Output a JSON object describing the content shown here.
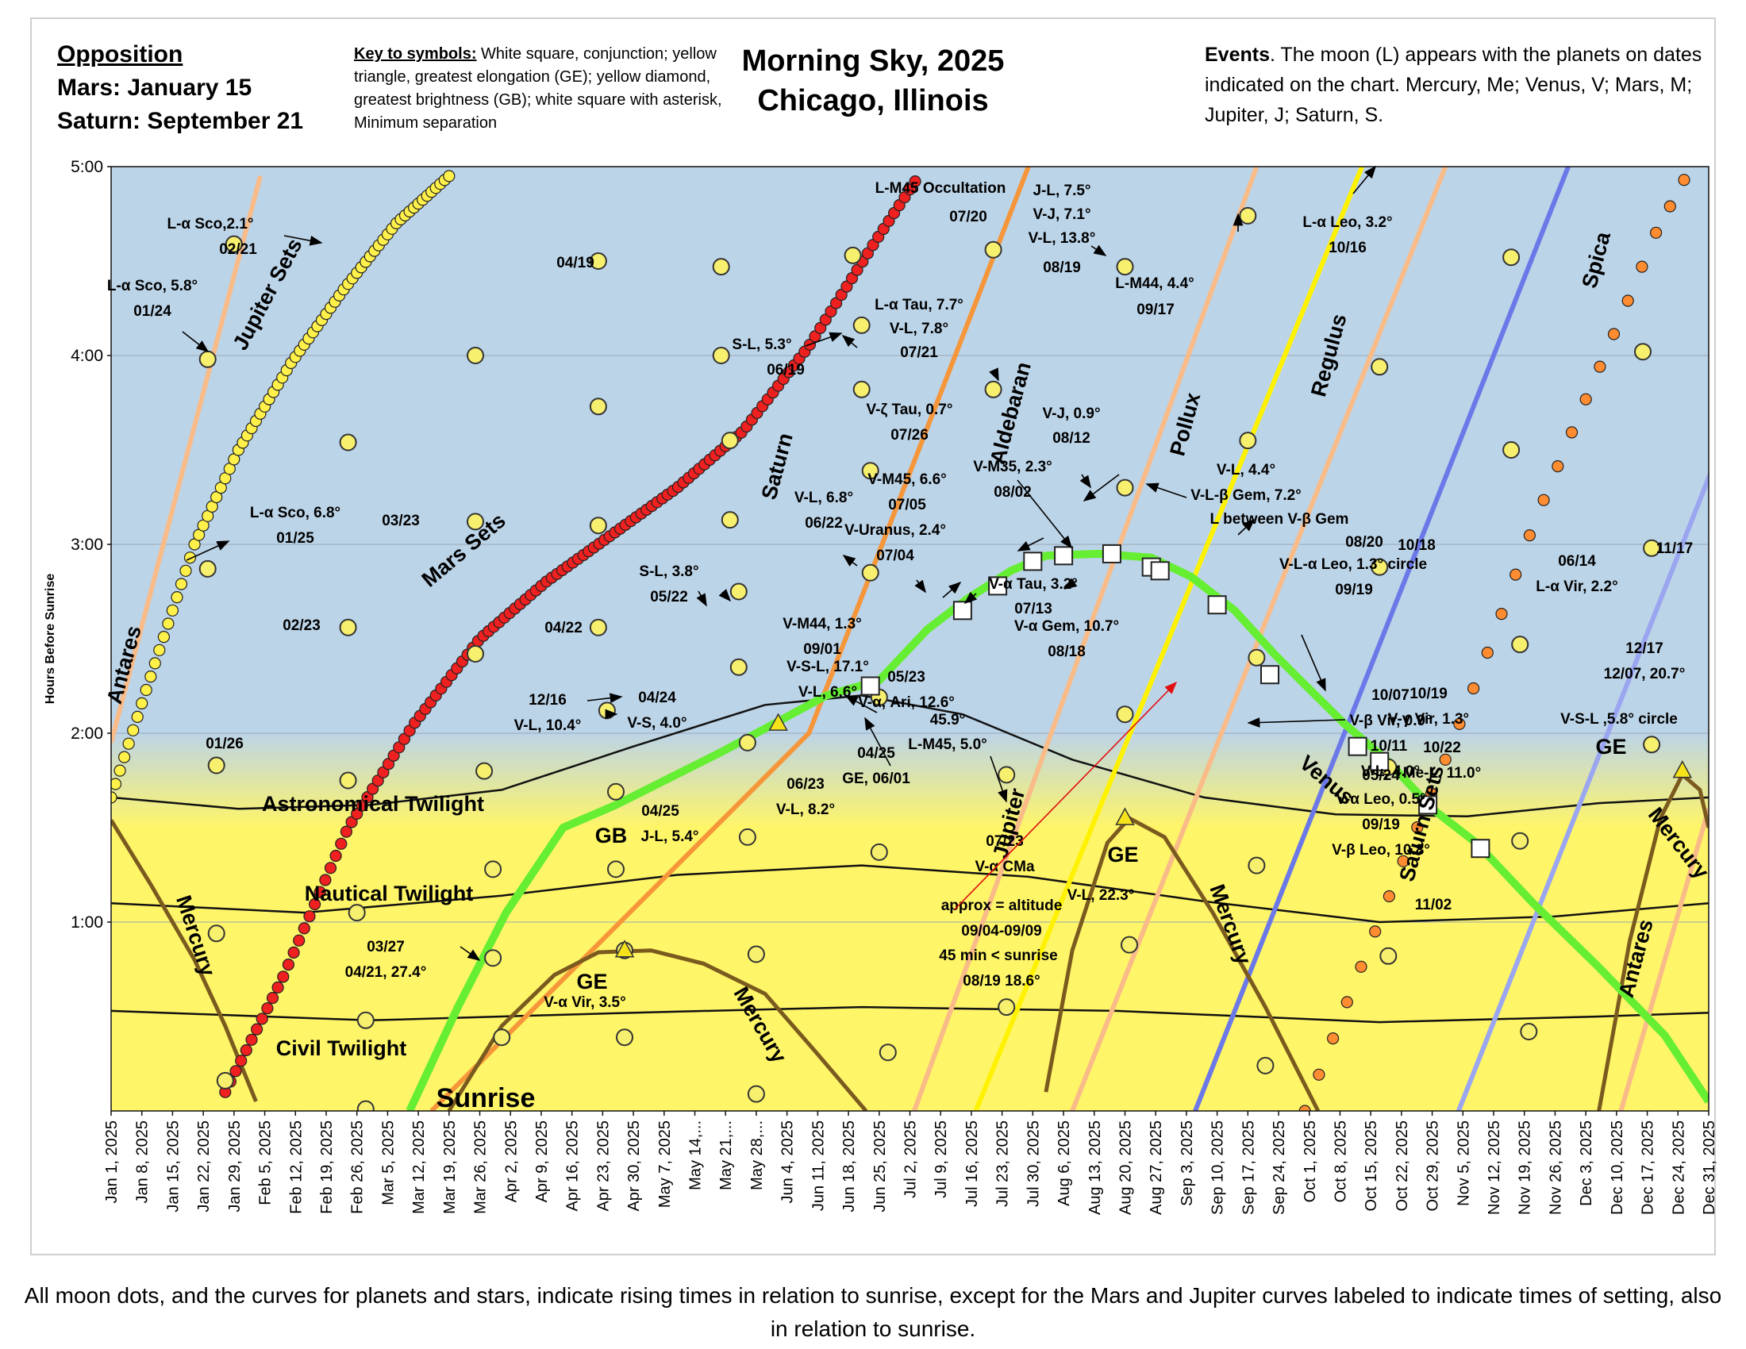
{
  "header": {
    "opposition_title": "Opposition",
    "opposition_mars": "Mars: January 15",
    "opposition_saturn": "Saturn: September 21",
    "key_label": "Key to symbols:",
    "key_text": " White square, conjunction; yellow triangle, greatest elongation (GE); yellow diamond, greatest brightness (GB); white square with asterisk, Minimum separation",
    "title_line1": "Morning Sky, 2025",
    "title_line2": "Chicago, Illinois",
    "events_label": "Events",
    "events_text": ".  The moon (L) appears with the planets on dates indicated on the chart. Mercury, Me; Venus, V; Mars, M; Jupiter, J; Saturn, S."
  },
  "caption": "All moon dots, and the curves for planets and stars, indicate rising  times in relation to sunrise, except for the Mars and Jupiter curves labeled to indicate times of setting, also in relation to sunrise.",
  "colors": {
    "sky": "#bcd4e8",
    "twilight_yellow": "#fff568",
    "venus": "#66ee33",
    "mars": "#ee2020",
    "jupiter_sets": "#fff04a",
    "saturn_sets": "#ff8c30",
    "mercury": "#7a5a1e",
    "saturn": "#f5963a",
    "aldebaran": "#f9bb88",
    "pollux": "#f9bb88",
    "antares": "#f9bb88",
    "jupiter": "#fff200",
    "regulus": "#6b78e8",
    "spica": "#9aa6f0",
    "moon": "#f7ef6e"
  },
  "chart_data": {
    "type": "scatter",
    "title": "Morning Sky, 2025",
    "ylabel": "Hours Before Sunrise",
    "xlabel": "",
    "y_range_hours": [
      0,
      5
    ],
    "x_range_days": [
      1,
      365
    ],
    "yticks": [
      "1:00",
      "2:00",
      "3:00",
      "4:00",
      "5:00"
    ],
    "xticks": [
      "Jan 1, 2025",
      "Jan 8, 2025",
      "Jan 15, 2025",
      "Jan 22, 2025",
      "Jan 29, 2025",
      "Feb 5, 2025",
      "Feb 12, 2025",
      "Feb 19, 2025",
      "Feb 26, 2025",
      "Mar 5, 2025",
      "Mar 12, 2025",
      "Mar 19, 2025",
      "Mar 26, 2025",
      "Apr 2, 2025",
      "Apr 9, 2025",
      "Apr 16, 2025",
      "Apr 23, 2025",
      "Apr 30, 2025",
      "May 7, 2025",
      "May 14,...",
      "May 21,...",
      "May 28,...",
      "Jun 4, 2025",
      "Jun 11, 2025",
      "Jun 18, 2025",
      "Jun 25, 2025",
      "Jul 2, 2025",
      "Jul 9, 2025",
      "Jul 16, 2025",
      "Jul 23, 2025",
      "Jul 30, 2025",
      "Aug 6, 2025",
      "Aug 13, 2025",
      "Aug 20, 2025",
      "Aug 27, 2025",
      "Sep 3, 2025",
      "Sep 10, 2025",
      "Sep 17, 2025",
      "Sep 24, 2025",
      "Oct 1, 2025",
      "Oct 8, 2025",
      "Oct 15, 2025",
      "Oct 22, 2025",
      "Oct 29, 2025",
      "Nov 5, 2025",
      "Nov 12, 2025",
      "Nov 19, 2025",
      "Nov 26, 2025",
      "Dec 3, 2025",
      "Dec 10, 2025",
      "Dec 17, 2025",
      "Dec 24, 2025",
      "Dec 31, 2025"
    ],
    "twilight": {
      "astronomical": [
        [
          1,
          1.66
        ],
        [
          30,
          1.6
        ],
        [
          60,
          1.62
        ],
        [
          90,
          1.7
        ],
        [
          120,
          1.93
        ],
        [
          150,
          2.15
        ],
        [
          172,
          2.2
        ],
        [
          195,
          2.1
        ],
        [
          220,
          1.86
        ],
        [
          250,
          1.66
        ],
        [
          280,
          1.57
        ],
        [
          310,
          1.56
        ],
        [
          340,
          1.63
        ],
        [
          365,
          1.66
        ]
      ],
      "nautical": [
        [
          1,
          1.1
        ],
        [
          45,
          1.05
        ],
        [
          90,
          1.14
        ],
        [
          130,
          1.25
        ],
        [
          172,
          1.3
        ],
        [
          210,
          1.24
        ],
        [
          250,
          1.11
        ],
        [
          290,
          1.0
        ],
        [
          330,
          1.03
        ],
        [
          365,
          1.1
        ]
      ],
      "civil": [
        [
          1,
          0.53
        ],
        [
          60,
          0.48
        ],
        [
          120,
          0.52
        ],
        [
          172,
          0.55
        ],
        [
          230,
          0.53
        ],
        [
          290,
          0.47
        ],
        [
          340,
          0.5
        ],
        [
          365,
          0.52
        ]
      ]
    },
    "venus": [
      [
        69,
        0
      ],
      [
        80,
        0.55
      ],
      [
        91,
        1.05
      ],
      [
        104,
        1.5
      ],
      [
        116,
        1.62
      ],
      [
        128,
        1.76
      ],
      [
        140,
        1.9
      ],
      [
        152,
        2.05
      ],
      [
        164,
        2.2
      ],
      [
        176,
        2.28
      ],
      [
        187,
        2.55
      ],
      [
        196,
        2.71
      ],
      [
        206,
        2.86
      ],
      [
        214,
        2.94
      ],
      [
        226,
        2.95
      ],
      [
        238,
        2.93
      ],
      [
        247,
        2.83
      ],
      [
        257,
        2.65
      ],
      [
        266,
        2.42
      ],
      [
        272,
        2.28
      ],
      [
        282,
        2.05
      ],
      [
        292,
        1.85
      ],
      [
        302,
        1.6
      ],
      [
        312,
        1.42
      ],
      [
        325,
        1.1
      ],
      [
        340,
        0.76
      ],
      [
        355,
        0.4
      ],
      [
        365,
        0.05
      ]
    ],
    "mars_sets": [
      [
        27,
        0.1
      ],
      [
        40,
        0.7
      ],
      [
        55,
        1.5
      ],
      [
        70,
        2.05
      ],
      [
        85,
        2.5
      ],
      [
        100,
        2.8
      ],
      [
        115,
        3.05
      ],
      [
        130,
        3.3
      ],
      [
        145,
        3.6
      ],
      [
        160,
        4.05
      ],
      [
        175,
        4.6
      ],
      [
        185,
        4.95
      ]
    ],
    "jupiter_sets": [
      [
        1,
        1.66
      ],
      [
        10,
        2.3
      ],
      [
        20,
        3.0
      ],
      [
        30,
        3.5
      ],
      [
        42,
        3.96
      ],
      [
        54,
        4.35
      ],
      [
        66,
        4.7
      ],
      [
        78,
        4.95
      ]
    ],
    "saturn_sets": [
      [
        273,
        0
      ],
      [
        283,
        0.6
      ],
      [
        295,
        1.3
      ],
      [
        305,
        1.86
      ],
      [
        315,
        2.45
      ],
      [
        325,
        3.1
      ],
      [
        335,
        3.66
      ],
      [
        345,
        4.2
      ],
      [
        353,
        4.65
      ],
      [
        361,
        5.0
      ]
    ],
    "mercury": [
      [
        [
          1,
          1.54
        ],
        [
          10,
          1.2
        ],
        [
          20,
          0.8
        ],
        [
          27,
          0.45
        ],
        [
          34,
          0.05
        ]
      ],
      [
        [
          78,
          0
        ],
        [
          90,
          0.45
        ],
        [
          102,
          0.72
        ],
        [
          112,
          0.84
        ],
        [
          124,
          0.85
        ],
        [
          136,
          0.78
        ],
        [
          150,
          0.62
        ],
        [
          162,
          0.3
        ],
        [
          173,
          0
        ]
      ],
      [
        [
          214,
          0.1
        ],
        [
          220,
          0.85
        ],
        [
          228,
          1.42
        ],
        [
          233,
          1.55
        ],
        [
          241,
          1.45
        ],
        [
          252,
          1.05
        ],
        [
          264,
          0.55
        ],
        [
          276,
          0
        ]
      ],
      [
        [
          340,
          0
        ],
        [
          347,
          0.9
        ],
        [
          354,
          1.55
        ],
        [
          359,
          1.78
        ],
        [
          363,
          1.7
        ],
        [
          365,
          1.5
        ]
      ]
    ],
    "stars": [
      {
        "name": "Saturn",
        "points": [
          [
            74,
            0
          ],
          [
            160,
            2.0
          ],
          [
            210,
            5.0
          ]
        ]
      },
      {
        "name": "Aldebaran",
        "points": [
          [
            184,
            0
          ],
          [
            262,
            5.0
          ]
        ]
      },
      {
        "name": "Jupiter",
        "points": [
          [
            198,
            0
          ],
          [
            286,
            5.0
          ]
        ]
      },
      {
        "name": "Pollux",
        "points": [
          [
            220,
            0
          ],
          [
            305,
            5.0
          ]
        ]
      },
      {
        "name": "Regulus",
        "points": [
          [
            248,
            0
          ],
          [
            333,
            5.0
          ]
        ]
      },
      {
        "name": "Spica",
        "points": [
          [
            308,
            0
          ],
          [
            393,
            5.0
          ]
        ]
      },
      {
        "name": "Antares",
        "points": [
          [
            1,
            1.95
          ],
          [
            35,
            4.95
          ]
        ]
      },
      {
        "name": "Antares",
        "points": [
          [
            345,
            0
          ],
          [
            365,
            1.6
          ]
        ]
      }
    ],
    "moon_dots": [
      [
        23,
        3.98
      ],
      [
        23,
        2.87
      ],
      [
        25,
        0.94
      ],
      [
        25,
        1.83
      ],
      [
        27,
        0.16
      ],
      [
        29,
        4.59
      ],
      [
        55,
        3.54
      ],
      [
        55,
        2.56
      ],
      [
        55,
        1.75
      ],
      [
        57,
        1.05
      ],
      [
        59,
        0.48
      ],
      [
        59,
        0.01
      ],
      [
        84,
        4.0
      ],
      [
        84,
        3.12
      ],
      [
        84,
        2.42
      ],
      [
        86,
        1.8
      ],
      [
        88,
        1.28
      ],
      [
        88,
        0.81
      ],
      [
        90,
        0.39
      ],
      [
        112,
        4.5
      ],
      [
        112,
        3.73
      ],
      [
        112,
        3.1
      ],
      [
        112,
        2.56
      ],
      [
        114,
        2.12
      ],
      [
        116,
        1.69
      ],
      [
        116,
        1.28
      ],
      [
        118,
        0.85
      ],
      [
        118,
        0.39
      ],
      [
        140,
        4.47
      ],
      [
        140,
        4.0
      ],
      [
        142,
        3.55
      ],
      [
        142,
        3.13
      ],
      [
        144,
        2.75
      ],
      [
        144,
        2.35
      ],
      [
        146,
        1.95
      ],
      [
        146,
        1.45
      ],
      [
        148,
        0.83
      ],
      [
        148,
        0.09
      ],
      [
        170,
        4.53
      ],
      [
        172,
        4.16
      ],
      [
        172,
        3.82
      ],
      [
        174,
        3.39
      ],
      [
        174,
        2.85
      ],
      [
        176,
        2.19
      ],
      [
        176,
        1.37
      ],
      [
        178,
        0.31
      ],
      [
        202,
        4.56
      ],
      [
        202,
        3.82
      ],
      [
        205,
        1.78
      ],
      [
        205,
        0.55
      ],
      [
        232,
        4.47
      ],
      [
        232,
        3.3
      ],
      [
        232,
        2.1
      ],
      [
        233,
        0.88
      ],
      [
        260,
        4.74
      ],
      [
        260,
        3.55
      ],
      [
        262,
        2.4
      ],
      [
        262,
        1.3
      ],
      [
        264,
        0.24
      ],
      [
        290,
        3.94
      ],
      [
        290,
        2.88
      ],
      [
        292,
        1.82
      ],
      [
        292,
        0.82
      ],
      [
        320,
        4.52
      ],
      [
        320,
        3.5
      ],
      [
        322,
        2.47
      ],
      [
        322,
        1.43
      ],
      [
        324,
        0.42
      ],
      [
        350,
        4.02
      ],
      [
        352,
        2.98
      ],
      [
        352,
        1.94
      ]
    ],
    "conjunctions": [
      [
        174,
        2.25
      ],
      [
        195,
        2.65
      ],
      [
        203,
        2.78
      ],
      [
        211,
        2.91
      ],
      [
        218,
        2.94
      ],
      [
        229,
        2.95
      ],
      [
        238,
        2.88
      ],
      [
        240,
        2.86
      ],
      [
        253,
        2.68
      ],
      [
        265,
        2.31
      ],
      [
        285,
        1.93
      ],
      [
        290,
        1.85
      ],
      [
        301,
        1.62
      ],
      [
        313,
        1.39
      ]
    ],
    "elongations": [
      [
        118,
        0.85
      ],
      [
        153,
        2.05
      ],
      [
        232,
        1.55
      ],
      [
        359,
        1.8
      ]
    ],
    "labels": {
      "series": [
        "Jupiter Sets",
        "Mars Sets",
        "Saturn Sets",
        "Venus",
        "Mercury",
        "Mercury",
        "Mercury",
        "Mercury",
        "Saturn",
        "Aldebaran",
        "Jupiter",
        "Pollux",
        "Regulus",
        "Spica",
        "Antares",
        "Antares"
      ],
      "twilight": [
        "Astronomical Twilight",
        "Nautical Twilight",
        "Civil Twilight",
        "Sunrise"
      ],
      "greatest": [
        "GE",
        "GE",
        "GE",
        "GB"
      ],
      "annotations": [
        "L-α Sco,2.1°",
        "02/21",
        "L-α Sco, 5.8°",
        "01/24",
        "L-α Sco, 6.8°",
        "01/25",
        "01/26",
        "02/23",
        "03/23",
        "04/19",
        "04/22",
        "L-M45 Occultation",
        "07/20",
        "J-L, 7.5°",
        "V-J, 7.1°",
        "V-L, 13.8°",
        "08/19",
        "L-M44, 4.4°",
        "09/17",
        "L-α Leo, 3.2°",
        "10/16",
        "S-L, 5.3°",
        "06/19",
        "L-α Tau, 7.7°",
        "V-L, 7.8°",
        "07/21",
        "V-ζ Tau, 0.7°",
        "07/26",
        "V-J, 0.9°",
        "08/12",
        "V-M35, 2.3°",
        "08/02",
        "V-M45, 6.6°",
        "07/05",
        "V-Uranus, 2.4°",
        "07/04",
        "V-L, 6.8°",
        "06/22",
        "S-L, 3.8°",
        "05/22",
        "V-α Tau, 3.2°",
        "07/13",
        "V-L, 4.4°",
        "V-L-β Gem, 7.2°",
        "L between V-β Gem",
        "08/20",
        "10/18",
        "V-L-α Leo, 1.3° circle",
        "09/19",
        "V-α Gem, 10.7°",
        "08/18",
        "V-M44, 1.3°",
        "09/01",
        "V-S-L, 17.1°",
        "V-L, 6.6°",
        "05/23",
        "V-α, Ari, 12.6°",
        "06/14",
        "L-α Vir, 2.2°",
        "11/17",
        "12/16",
        "V-L, 10.4°",
        "04/24",
        "V-S, 4.0°",
        "04/25",
        "GE, 06/01",
        "45.9°",
        "L-M45, 5.0°",
        "06/23",
        "V-L, 8.2°",
        "05/24",
        "V-α Leo, 0.5°",
        "09/19",
        "V-β Leo, 10.8°",
        "10/07",
        "V-β Vir, 0.9°",
        "10/11",
        "V-L, 4.0°",
        "10/19",
        "V-γ Vir, 1.3°",
        "10/22",
        "Me-L, 11.0°",
        "12/17",
        "12/07, 20.7°",
        "V-S-L ,5.8° circle",
        "04/25",
        "J-L, 5.4°",
        "07/23",
        "V-α CMa",
        "approx = altitude",
        "09/04-09/09",
        "45 min < sunrise",
        "08/19 18.6°",
        "V-L, 22.3°",
        "03/27",
        "04/21, 27.4°",
        "V-α Vir, 3.5°",
        "11/02"
      ]
    }
  }
}
